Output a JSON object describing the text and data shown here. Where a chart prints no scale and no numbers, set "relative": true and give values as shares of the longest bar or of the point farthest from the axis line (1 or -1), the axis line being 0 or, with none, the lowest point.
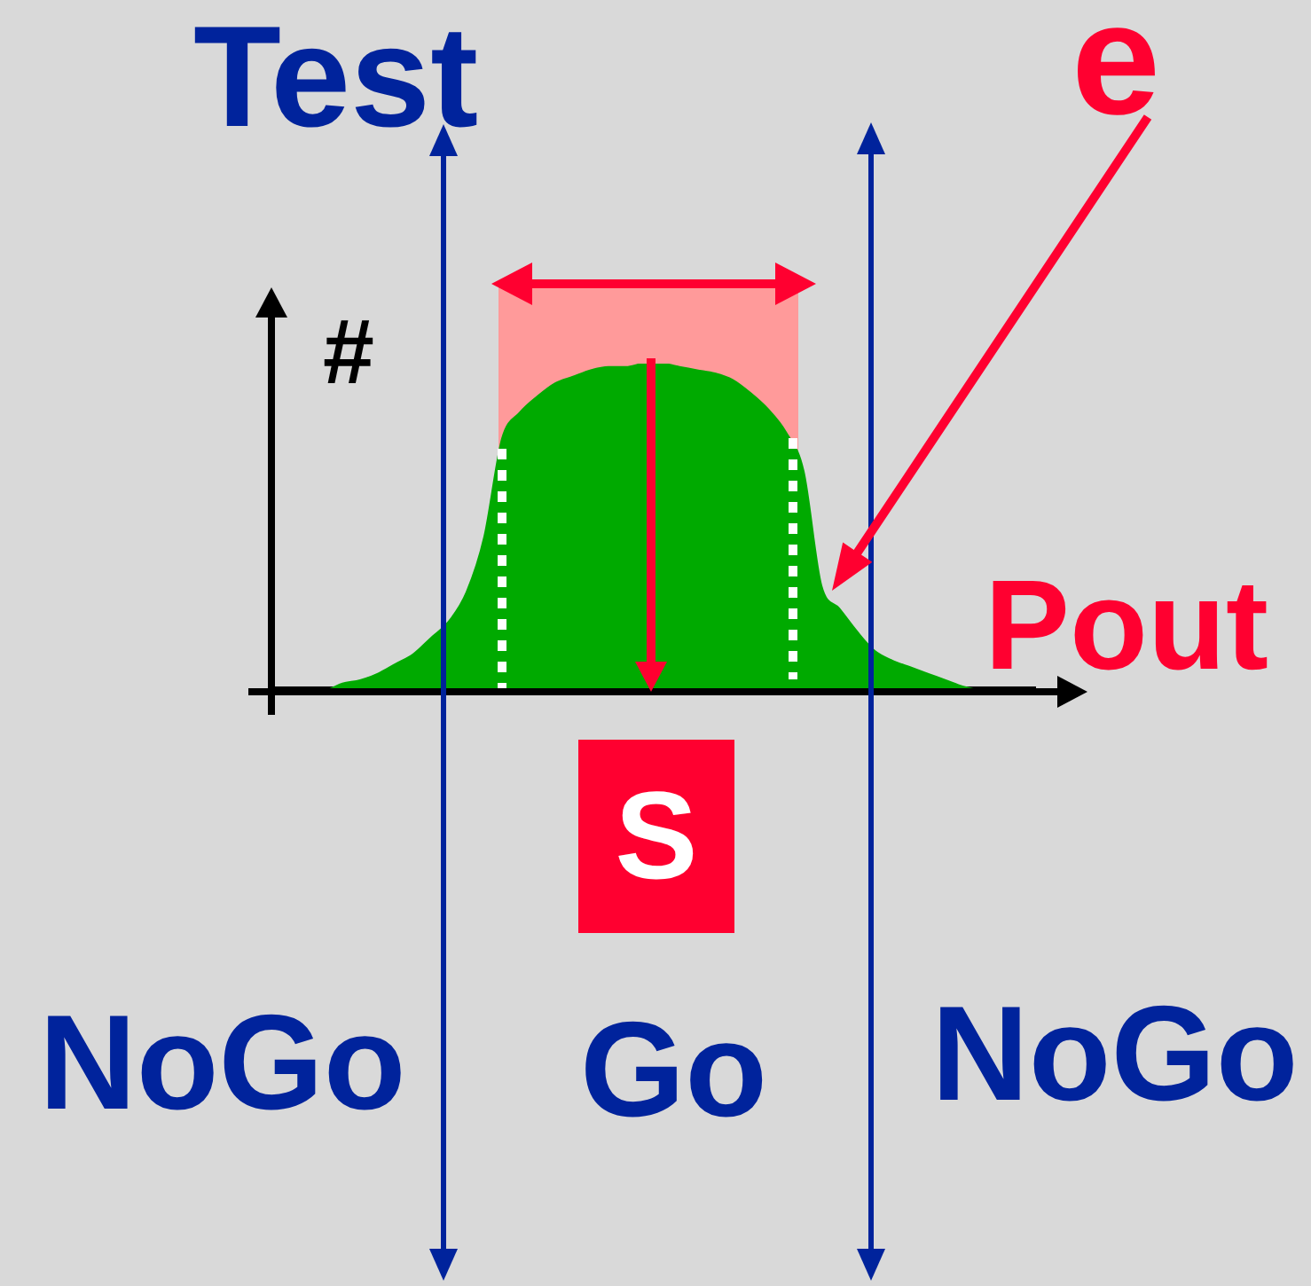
{
  "chart_data": {
    "type": "area",
    "xlabel": "Pout",
    "ylabel": "#",
    "annotations": [
      "Test",
      "e",
      "S",
      "NoGo",
      "Go",
      "NoGo"
    ],
    "relative": true,
    "color": "#00aa00",
    "categories": [
      null,
      null,
      null,
      null,
      null,
      null,
      null,
      null,
      null,
      null,
      null,
      null,
      null,
      null,
      null,
      null,
      null,
      null,
      null,
      null,
      null,
      null,
      null,
      null,
      null,
      null,
      null,
      null,
      null,
      null,
      null,
      null,
      null,
      null,
      null,
      null,
      null,
      null,
      null,
      null,
      null,
      null,
      null,
      null
    ],
    "values": [
      0,
      0,
      0,
      0,
      0.02,
      0.03,
      0.05,
      0.08,
      0.11,
      0.16,
      0.21,
      0.3,
      0.47,
      0.77,
      0.85,
      0.9,
      0.94,
      0.96,
      0.98,
      0.99,
      0.99,
      1,
      1,
      0.99,
      0.98,
      0.97,
      0.95,
      0.91,
      0.86,
      0.79,
      0.67,
      0.32,
      0.25,
      0.18,
      0.12,
      0.09,
      0.07,
      0.05,
      0.03,
      0.01,
      0,
      0,
      0,
      0
    ]
  }
}
